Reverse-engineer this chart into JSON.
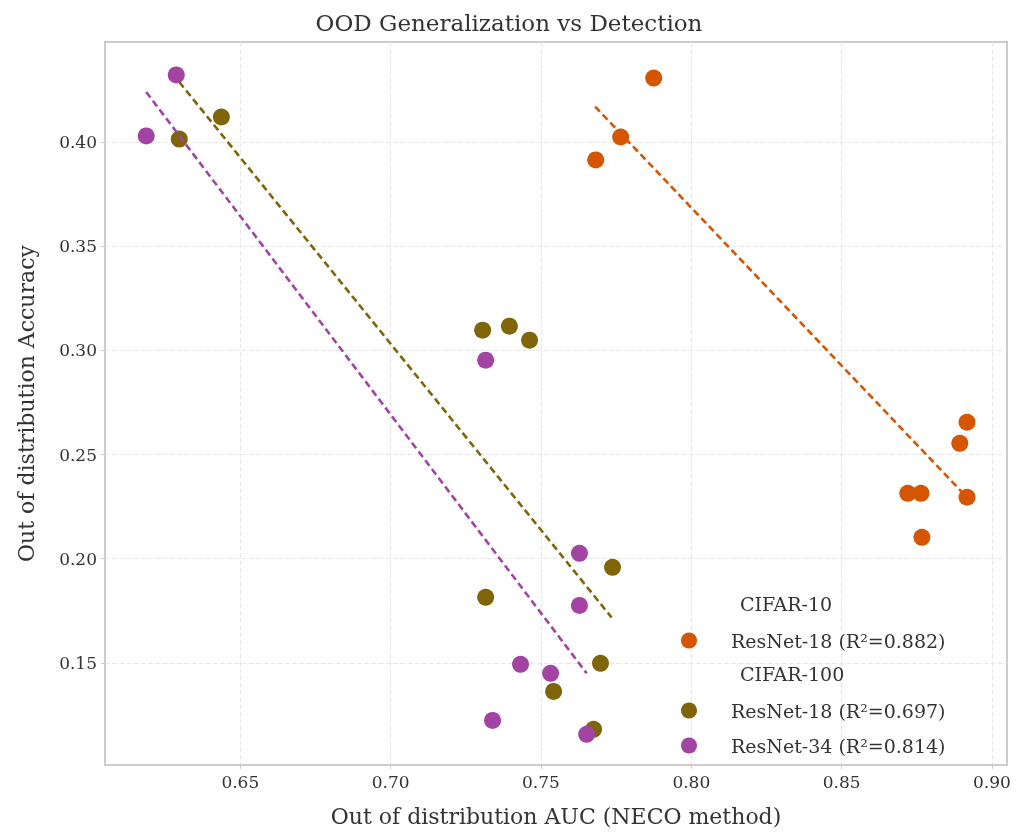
{
  "chart_data": {
    "type": "scatter",
    "title": "OOD Generalization vs Detection",
    "xlabel": "Out of distribution AUC (NECO method)",
    "ylabel": "Out of distribution Accuracy",
    "annotations": [
      "CIFAR-10",
      "CIFAR-100"
    ],
    "series": [
      {
        "name": "ResNet-18 (R²=0.882)",
        "color": "#d55500",
        "x": [
          0.7875,
          0.7765,
          0.7682,
          0.8917,
          0.8893,
          0.872,
          0.8764,
          0.8917,
          0.8767
        ],
        "values": [
          0.4307,
          0.4024,
          0.3914,
          0.2655,
          0.2554,
          0.2314,
          0.2314,
          0.2295,
          0.2103
        ]
      },
      {
        "type": "line",
        "color": "#d55500",
        "line_style": "dashed",
        "marker": "none",
        "x": [
          0.768,
          0.892
        ],
        "values": [
          0.417,
          0.229
        ]
      },
      {
        "name": "ResNet-18 (R²=0.697)",
        "color": "#7f6508",
        "x": [
          0.6437,
          0.6297,
          0.7306,
          0.7395,
          0.7462,
          0.7316,
          0.7542,
          0.7738,
          0.7698,
          0.7675
        ],
        "values": [
          0.412,
          0.4014,
          0.3097,
          0.3116,
          0.3049,
          0.1815,
          0.1363,
          0.1959,
          0.1498,
          0.1181
        ]
      },
      {
        "type": "line",
        "color": "#7f6508",
        "line_style": "dashed",
        "marker": "none",
        "x": [
          0.6297,
          0.7735
        ],
        "values": [
          0.4288,
          0.1718
        ]
      },
      {
        "name": "ResNet-34 (R²=0.814)",
        "color": "#a343a3",
        "x": [
          0.6287,
          0.6187,
          0.7316,
          0.7432,
          0.7532,
          0.7339,
          0.7628,
          0.7628,
          0.7652
        ],
        "values": [
          0.4322,
          0.4029,
          0.2953,
          0.1493,
          0.145,
          0.1224,
          0.2026,
          0.1776,
          0.1157
        ]
      },
      {
        "type": "line",
        "color": "#a343a3",
        "line_style": "dashed",
        "marker": "none",
        "x": [
          0.6187,
          0.7652
        ],
        "values": [
          0.424,
          0.145
        ]
      }
    ],
    "marker": "circle",
    "xlim": [
      0.605,
      0.905
    ],
    "ylim": [
      0.101,
      0.448
    ],
    "xticks": [
      {
        "value": 0.65,
        "label": "0.65"
      },
      {
        "value": 0.7,
        "label": "0.70"
      },
      {
        "value": 0.75,
        "label": "0.75"
      },
      {
        "value": 0.8,
        "label": "0.80"
      },
      {
        "value": 0.85,
        "label": "0.85"
      },
      {
        "value": 0.9,
        "label": "0.90"
      }
    ],
    "yticks": [
      {
        "value": 0.15,
        "label": "0.15"
      },
      {
        "value": 0.2,
        "label": "0.20"
      },
      {
        "value": 0.25,
        "label": "0.25"
      },
      {
        "value": 0.3,
        "label": "0.30"
      },
      {
        "value": 0.35,
        "label": "0.35"
      },
      {
        "value": 0.4,
        "label": "0.40"
      }
    ],
    "grid": true,
    "legend": "bottom right"
  }
}
